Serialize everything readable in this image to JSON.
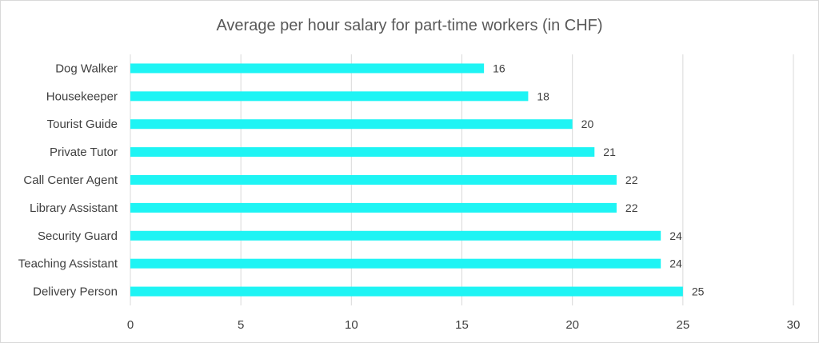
{
  "chart_data": {
    "type": "bar",
    "orientation": "horizontal",
    "title": "Average per hour salary for part-time workers (in CHF)",
    "categories": [
      "Dog Walker",
      "Housekeeper",
      "Tourist Guide",
      "Private Tutor",
      "Call Center Agent",
      "Library Assistant",
      "Security Guard",
      "Teaching Assistant",
      "Delivery Person"
    ],
    "values": [
      16,
      18,
      20,
      21,
      22,
      22,
      24,
      24,
      25
    ],
    "data_labels": [
      "16",
      "18",
      "20",
      "21",
      "22",
      "22",
      "24",
      "24",
      "25"
    ],
    "xlim": [
      0,
      30
    ],
    "xticks": [
      0,
      5,
      10,
      15,
      20,
      25,
      30
    ],
    "xtick_labels": [
      "0",
      "5",
      "10",
      "15",
      "20",
      "25",
      "30"
    ],
    "xlabel": "",
    "ylabel": "",
    "grid": true,
    "legend": "none",
    "colors": {
      "bar": "#1ef4f4",
      "grid": "#d9d9d9",
      "text": "#404040",
      "title": "#595959",
      "border": "#d9d9d9"
    }
  }
}
